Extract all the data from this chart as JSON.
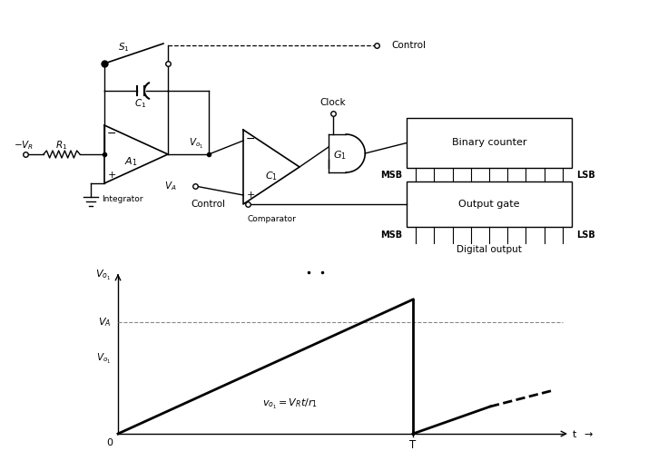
{
  "bg_color": "#ffffff",
  "fig_width": 7.36,
  "fig_height": 4.97,
  "circuit": {
    "vr_label": "$-V_R$",
    "r1_label": "$R_1$",
    "a1_label": "$A_1$",
    "c1_cap_label": "$C_1$",
    "c1_comp_label": "$C_1$",
    "g1_label": "$G_1$",
    "s1_label": "$S_1$",
    "va_label": "$V_A$",
    "vo1_label": "$V_{o_1}$",
    "integrator_label": "Integrator",
    "comparator_label": "Comparator",
    "binary_counter_label": "Binary counter",
    "output_gate_label": "Output gate",
    "clock_label": "Clock",
    "control_label": "Control",
    "msb_label": "MSB",
    "lsb_label": "LSB",
    "digital_output_label": "Digital output"
  },
  "graph": {
    "va_label": "$V_A$",
    "vo1_label": "$V_{o_1}$",
    "equation_label": "$v_{o_1} = V_R t/r_1$",
    "t_label": "t",
    "T_label": "T",
    "O_label": "0"
  }
}
